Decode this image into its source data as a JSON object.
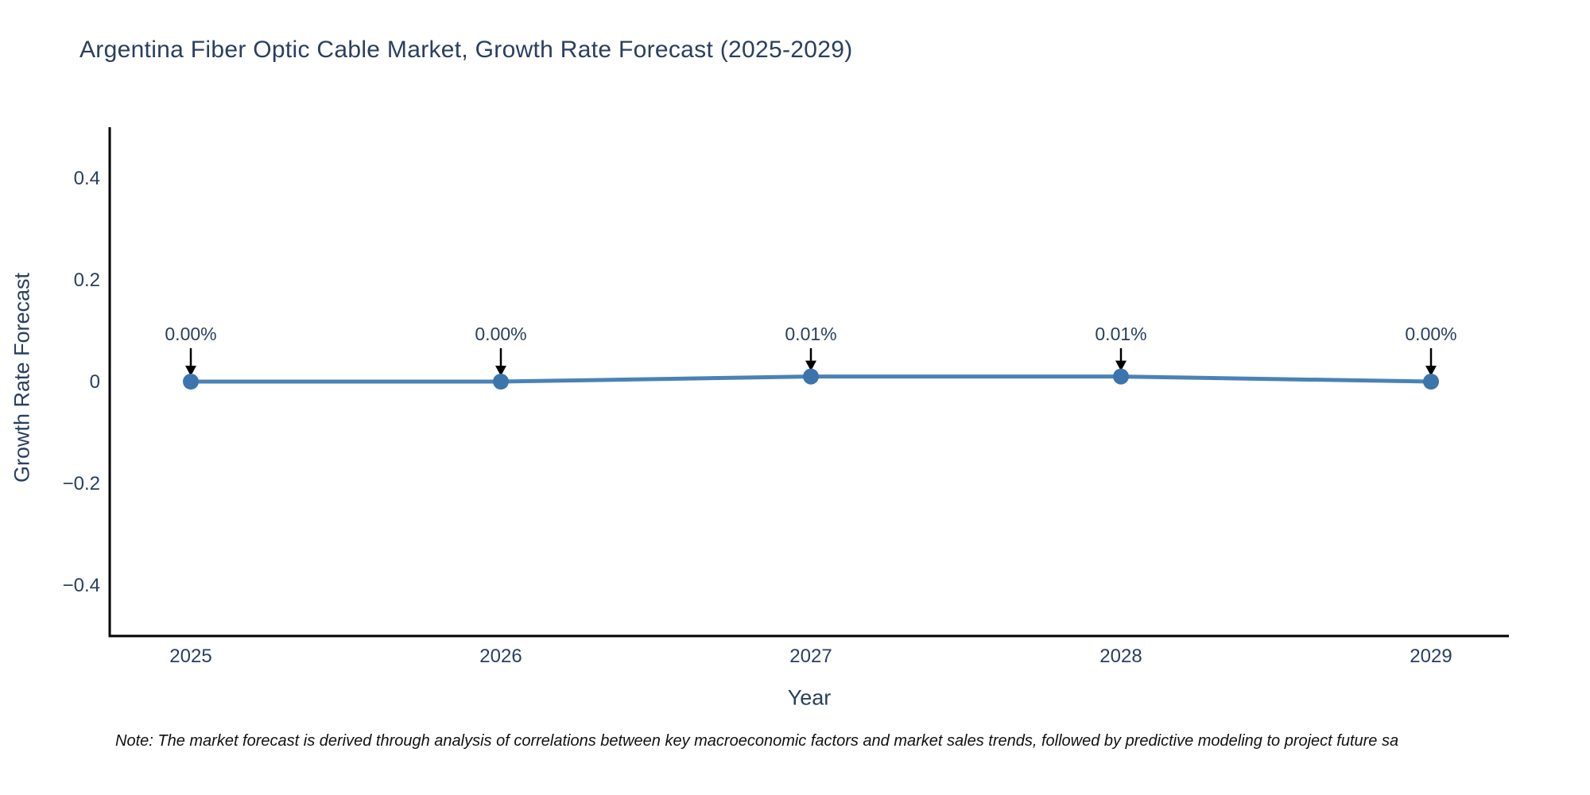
{
  "chart": {
    "title": "Argentina Fiber Optic Cable Market, Growth Rate Forecast (2025-2029)",
    "ylabel": "Growth Rate Forecast",
    "xlabel": "Year",
    "note": "Note: The market forecast is derived through analysis of correlations between key macroeconomic factors and market sales trends, followed by predictive modeling to project future sa"
  },
  "chart_data": {
    "type": "line",
    "title": "Argentina Fiber Optic Cable Market, Growth Rate Forecast (2025-2029)",
    "xlabel": "Year",
    "ylabel": "Growth Rate Forecast",
    "x": [
      2025,
      2026,
      2027,
      2028,
      2029
    ],
    "values": [
      0.0,
      0.0,
      0.01,
      0.01,
      0.0
    ],
    "point_labels": [
      "0.00%",
      "0.00%",
      "0.01%",
      "0.01%",
      "0.00%"
    ],
    "xtick_labels": [
      "2025",
      "2026",
      "2027",
      "2028",
      "2029"
    ],
    "yticks": [
      0.4,
      0.2,
      0,
      -0.2,
      -0.4
    ],
    "ytick_labels": [
      "0.4",
      "0.2",
      "0",
      "−0.2",
      "−0.4"
    ],
    "ylim": [
      -0.5,
      0.5
    ],
    "grid": false,
    "legend": false,
    "colors": {
      "line": "#4a82b6",
      "marker": "#3c74ac",
      "axis_line": "#000000",
      "tick_text": "#2a3f5f",
      "annotation_text": "#2a3f5f",
      "annotation_arrow": "#000000",
      "background": "#ffffff"
    }
  }
}
